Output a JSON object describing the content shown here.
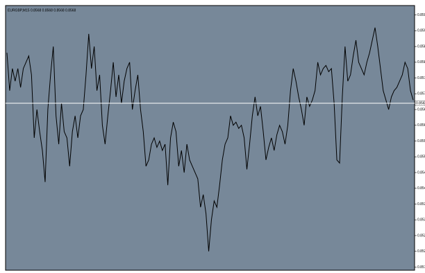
{
  "chart_data": {
    "type": "line",
    "title": "EURGBP,M15  0.8568 0.8568 0.8568 0.8568",
    "series": [
      {
        "name": "EURGBP,M15",
        "color": "#000000",
        "values": [
          0.8583,
          0.8571,
          0.8578,
          0.8574,
          0.8578,
          0.8572,
          0.8578,
          0.858,
          0.8582,
          0.8576,
          0.8556,
          0.8565,
          0.8558,
          0.8552,
          0.8542,
          0.8565,
          0.8576,
          0.8585,
          0.8563,
          0.8554,
          0.8567,
          0.8558,
          0.8556,
          0.8547,
          0.8558,
          0.8563,
          0.8556,
          0.8563,
          0.8565,
          0.8576,
          0.8589,
          0.8578,
          0.8585,
          0.8571,
          0.8576,
          0.856,
          0.8554,
          0.8563,
          0.8571,
          0.858,
          0.8569,
          0.8576,
          0.8567,
          0.8574,
          0.8578,
          0.858,
          0.8565,
          0.8571,
          0.8576,
          0.8565,
          0.8558,
          0.8547,
          0.8549,
          0.8554,
          0.8556,
          0.8553,
          0.8555,
          0.8552,
          0.8554,
          0.8541,
          0.8556,
          0.8561,
          0.8558,
          0.8547,
          0.8552,
          0.8545,
          0.8554,
          0.8549,
          0.8547,
          0.8545,
          0.8543,
          0.8534,
          0.8538,
          0.8532,
          0.852,
          0.853,
          0.8536,
          0.8534,
          0.8541,
          0.8549,
          0.8554,
          0.8556,
          0.8563,
          0.856,
          0.8561,
          0.8559,
          0.856,
          0.8556,
          0.8546,
          0.8554,
          0.8563,
          0.8569,
          0.8563,
          0.8566,
          0.8558,
          0.8549,
          0.8553,
          0.8556,
          0.8552,
          0.8557,
          0.856,
          0.8558,
          0.8554,
          0.856,
          0.8571,
          0.8578,
          0.8574,
          0.8569,
          0.8565,
          0.856,
          0.8569,
          0.8566,
          0.8568,
          0.8571,
          0.858,
          0.8576,
          0.8578,
          0.8579,
          0.8577,
          0.8578,
          0.8567,
          0.8549,
          0.8548,
          0.8569,
          0.8585,
          0.8574,
          0.8576,
          0.8582,
          0.8587,
          0.858,
          0.8578,
          0.8576,
          0.858,
          0.8583,
          0.8587,
          0.8591,
          0.8585,
          0.8578,
          0.8571,
          0.8568,
          0.8565,
          0.8569,
          0.8571,
          0.8572,
          0.8574,
          0.8576,
          0.858,
          0.8578,
          0.8571,
          0.8568
        ]
      }
    ],
    "current_price": 0.8567,
    "price_line_color": "#ffffff",
    "plot_color": "#778899",
    "ylim": [
      0.8514,
      0.8598
    ],
    "yticks": [
      0.8595,
      {
        "value": 0.859,
        "label": "0.8590"
      },
      0.8585,
      {
        "value": 0.858,
        "label": "0.8580"
      },
      0.8575,
      {
        "value": 0.857,
        "label": "0.8570"
      },
      0.8565,
      {
        "value": 0.856,
        "label": "0.8560"
      },
      0.8555,
      {
        "value": 0.855,
        "label": "0.8550"
      },
      0.8545,
      {
        "value": 0.854,
        "label": "0.8540"
      },
      0.8535,
      {
        "value": 0.853,
        "label": "0.8530"
      },
      0.8525,
      {
        "value": 0.852,
        "label": "0.8520"
      },
      0.8515
    ]
  }
}
